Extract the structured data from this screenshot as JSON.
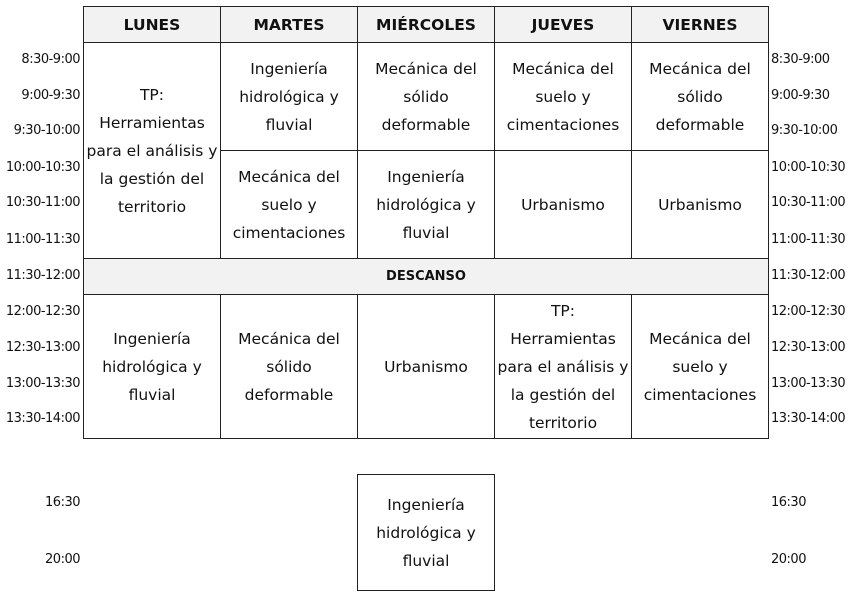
{
  "days": [
    "LUNES",
    "MARTES",
    "MIÉRCOLES",
    "JUEVES",
    "VIERNES"
  ],
  "times": [
    "8:30-9:00",
    "9:00-9:30",
    "9:30-10:00",
    "10:00-10:30",
    "10:30-11:00",
    "11:00-11:30",
    "11:30-12:00",
    "12:00-12:30",
    "12:30-13:00",
    "13:00-13:30",
    "13:30-14:00",
    "16:30",
    "20:00"
  ],
  "break_label": "DESCANSO",
  "cells": [
    {
      "day": "LUNES",
      "slot": "8:30-11:30",
      "subject": "TP: Herramientas para el análisis y la gestión del territorio"
    },
    {
      "day": "MARTES",
      "slot": "8:30-10:00",
      "subject": "Ingeniería hidrológica y fluvial"
    },
    {
      "day": "MIÉRCOLES",
      "slot": "8:30-10:00",
      "subject": "Mecánica del sólido deformable"
    },
    {
      "day": "JUEVES",
      "slot": "8:30-10:00",
      "subject": "Mecánica del suelo y cimentaciones"
    },
    {
      "day": "VIERNES",
      "slot": "8:30-10:00",
      "subject": "Mecánica del sólido deformable"
    },
    {
      "day": "MARTES",
      "slot": "10:00-11:30",
      "subject": "Mecánica del suelo y cimentaciones"
    },
    {
      "day": "MIÉRCOLES",
      "slot": "10:00-11:30",
      "subject": "Ingeniería hidrológica y fluvial"
    },
    {
      "day": "JUEVES",
      "slot": "10:00-11:30",
      "subject": "Urbanismo"
    },
    {
      "day": "VIERNES",
      "slot": "10:00-11:30",
      "subject": "Urbanismo"
    },
    {
      "day": "LUNES",
      "slot": "12:00-14:00",
      "subject": "Ingeniería hidrológica y fluvial"
    },
    {
      "day": "MARTES",
      "slot": "12:00-14:00",
      "subject": "Mecánica del sólido deformable"
    },
    {
      "day": "MIÉRCOLES",
      "slot": "12:00-14:00",
      "subject": "Urbanismo"
    },
    {
      "day": "JUEVES",
      "slot": "12:00-14:00",
      "subject": "TP: Herramientas para el análisis y la gestión del territorio"
    },
    {
      "day": "VIERNES",
      "slot": "12:00-14:00",
      "subject": "Mecánica del suelo y cimentaciones"
    },
    {
      "day": "MIÉRCOLES",
      "slot": "16:30-20:00",
      "subject": "Ingeniería hidrológica y fluvial"
    }
  ]
}
